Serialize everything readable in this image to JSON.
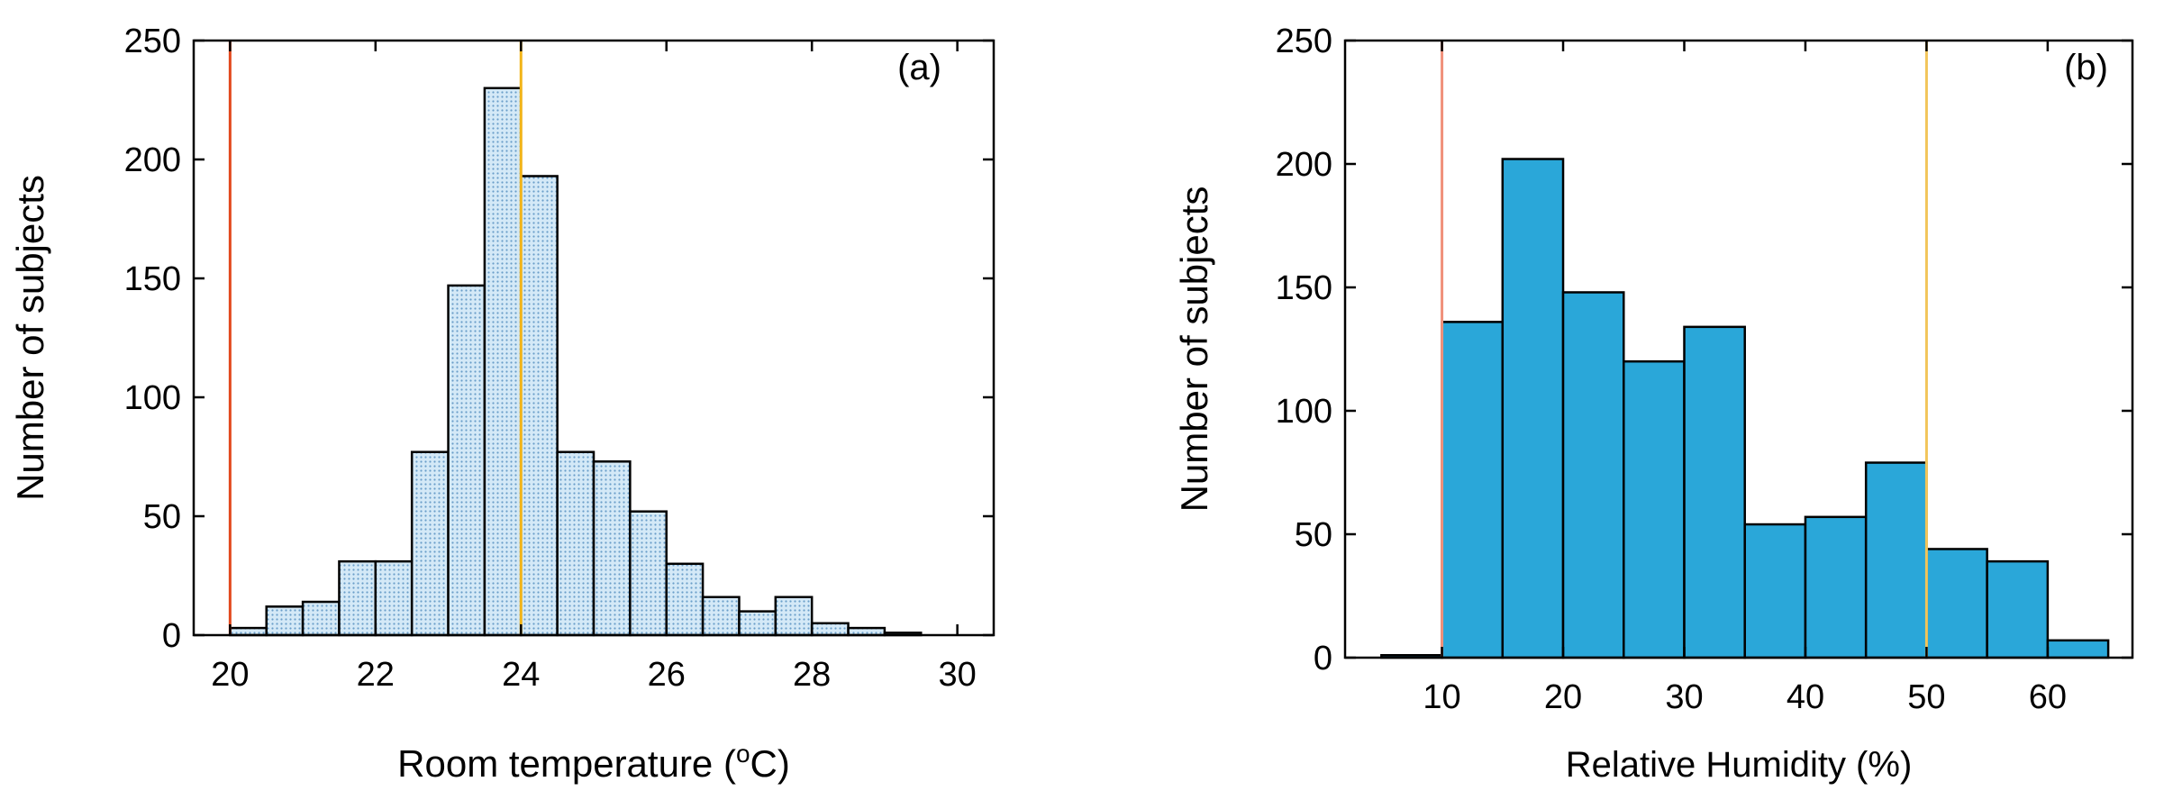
{
  "chart_data": [
    {
      "type": "bar",
      "panel_label": "(a)",
      "title": "",
      "xlabel": {
        "main": "Room temperature (",
        "sup": "o",
        "end": "C)"
      },
      "ylabel": "Number of subjects",
      "xlim": [
        19.5,
        30.5
      ],
      "ylim": [
        0,
        250
      ],
      "xticks": [
        "20",
        "22",
        "24",
        "26",
        "28",
        "30"
      ],
      "yticks": [
        "0",
        "50",
        "100",
        "150",
        "200",
        "250"
      ],
      "bin_width": 0.5,
      "bin_starts": [
        20,
        20.5,
        21,
        21.5,
        22,
        22.5,
        23,
        23.5,
        24,
        24.5,
        25,
        25.5,
        26,
        26.5,
        27,
        27.5,
        28,
        28.5,
        29,
        29.5
      ],
      "values": [
        3,
        12,
        14,
        31,
        31,
        77,
        147,
        230,
        193,
        77,
        73,
        52,
        30,
        16,
        10,
        16,
        5,
        3,
        1,
        0
      ],
      "bar_color": "#d4e9f7",
      "bar_pattern_color": "#6a9ec9",
      "ref_lines": [
        {
          "x": 20,
          "color": "#e24a1e"
        },
        {
          "x": 24,
          "color": "#f2b418"
        }
      ],
      "grid": false
    },
    {
      "type": "bar",
      "panel_label": "(b)",
      "title": "",
      "xlabel": "Relative Humidity (%)",
      "ylabel": "Number of subjects",
      "xlim": [
        2,
        67
      ],
      "ylim": [
        0,
        250
      ],
      "xticks": [
        "10",
        "20",
        "30",
        "40",
        "50",
        "60"
      ],
      "yticks": [
        "0",
        "50",
        "100",
        "150",
        "200",
        "250"
      ],
      "bin_width": 5,
      "bin_starts": [
        5,
        10,
        15,
        20,
        25,
        30,
        35,
        40,
        45,
        50,
        55,
        60
      ],
      "values": [
        1,
        136,
        202,
        148,
        120,
        134,
        54,
        57,
        79,
        44,
        39,
        7
      ],
      "bar_color": "#2aa7d9",
      "ref_lines": [
        {
          "x": 10,
          "color": "#f0907a"
        },
        {
          "x": 50,
          "color": "#f2c55a"
        }
      ],
      "grid": false
    }
  ]
}
